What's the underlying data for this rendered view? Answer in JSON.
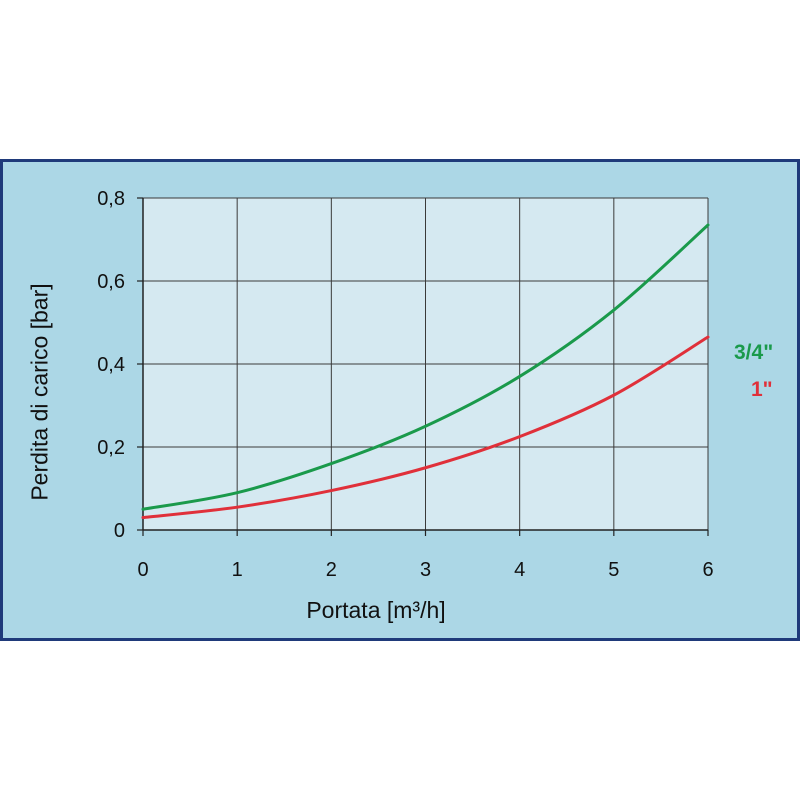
{
  "chart_data": {
    "type": "line",
    "title": "",
    "xlabel": "Portata [m³/h]",
    "ylabel": "Perdita di carico [bar]",
    "xlim": [
      0,
      6
    ],
    "ylim": [
      0,
      0.8
    ],
    "x_ticks": [
      "0",
      "1",
      "2",
      "3",
      "4",
      "5",
      "6"
    ],
    "y_ticks": [
      "0",
      "0,2",
      "0,4",
      "0,6",
      "0,8"
    ],
    "grid": true,
    "legend_placement": "right",
    "background_color": "#acd7e6",
    "plot_background_color": "#d5e9f1",
    "frame_color": "#1f3a7a",
    "series": [
      {
        "name": "3/4\"",
        "color": "#1a9a4b",
        "x": [
          0,
          1,
          2,
          3,
          4,
          5,
          6
        ],
        "y": [
          0.05,
          0.09,
          0.16,
          0.25,
          0.37,
          0.53,
          0.735
        ]
      },
      {
        "name": "1\"",
        "color": "#e0303a",
        "x": [
          0,
          1,
          2,
          3,
          4,
          5,
          6
        ],
        "y": [
          0.03,
          0.055,
          0.095,
          0.15,
          0.225,
          0.325,
          0.465
        ]
      }
    ]
  }
}
